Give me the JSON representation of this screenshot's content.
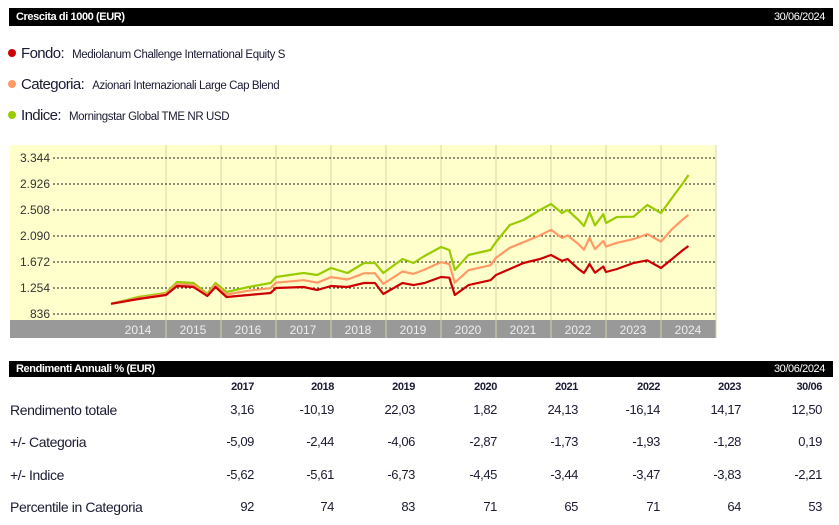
{
  "growth_header": {
    "title": "Crescita di 1000 (EUR)",
    "date": "30/06/2024"
  },
  "legend": [
    {
      "key": "Fondo:",
      "value": "Mediolanum Challenge International Equity S",
      "color": "#cc0000"
    },
    {
      "key": "Categoria:",
      "value": "Azionari Internazionali Large Cap Blend",
      "color": "#ff9966"
    },
    {
      "key": "Indice:",
      "value": "Morningstar Global TME NR USD",
      "color": "#99cc00"
    }
  ],
  "chart_data": {
    "type": "line",
    "title": "",
    "xlabel": "",
    "ylabel": "",
    "x_ticks": [
      "2014",
      "2015",
      "2016",
      "2017",
      "2018",
      "2019",
      "2020",
      "2021",
      "2022",
      "2023",
      "2024"
    ],
    "y_ticks": [
      "836",
      "1.254",
      "1.672",
      "2.090",
      "2.508",
      "2.926",
      "3.344"
    ],
    "y_tick_values": [
      836,
      1254,
      1672,
      2090,
      2508,
      2926,
      3344
    ],
    "ylim": [
      836,
      3344
    ],
    "xlim": [
      2012.2,
      2024.95
    ],
    "grid": true,
    "background": "#ffffcc",
    "x": [
      2014.0,
      2014.5,
      2015.0,
      2015.2,
      2015.5,
      2015.75,
      2015.9,
      2016.1,
      2016.5,
      2016.9,
      2017.0,
      2017.5,
      2017.75,
      2018.0,
      2018.3,
      2018.6,
      2018.8,
      2018.95,
      2019.3,
      2019.5,
      2019.7,
      2020.0,
      2020.15,
      2020.25,
      2020.5,
      2020.9,
      2021.0,
      2021.25,
      2021.5,
      2021.8,
      2022.0,
      2022.2,
      2022.3,
      2022.5,
      2022.6,
      2022.7,
      2022.8,
      2022.95,
      2023.0,
      2023.2,
      2023.5,
      2023.75,
      2024.0,
      2024.2,
      2024.4,
      2024.5
    ],
    "series": [
      {
        "name": "Fondo",
        "color": "#cc0000",
        "values": [
          1000,
          1077,
          1142,
          1286,
          1270,
          1126,
          1270,
          1109,
          1142,
          1174,
          1254,
          1270,
          1222,
          1286,
          1270,
          1334,
          1334,
          1158,
          1334,
          1300,
          1334,
          1431,
          1420,
          1142,
          1300,
          1380,
          1463,
          1560,
          1656,
          1720,
          1785,
          1690,
          1720,
          1560,
          1495,
          1640,
          1500,
          1600,
          1511,
          1560,
          1656,
          1700,
          1576,
          1720,
          1865,
          1929
        ]
      },
      {
        "name": "Categoria",
        "color": "#ff9966",
        "values": [
          1000,
          1090,
          1160,
          1320,
          1300,
          1140,
          1300,
          1150,
          1210,
          1250,
          1340,
          1380,
          1340,
          1430,
          1390,
          1490,
          1490,
          1320,
          1520,
          1480,
          1550,
          1670,
          1640,
          1340,
          1540,
          1620,
          1740,
          1900,
          1990,
          2100,
          2190,
          2060,
          2100,
          1960,
          1870,
          2060,
          1880,
          2010,
          1920,
          1980,
          2040,
          2120,
          2000,
          2200,
          2360,
          2428
        ]
      },
      {
        "name": "Indice",
        "color": "#99cc00",
        "values": [
          1000,
          1109,
          1174,
          1350,
          1334,
          1160,
          1334,
          1190,
          1270,
          1334,
          1431,
          1495,
          1463,
          1576,
          1495,
          1656,
          1656,
          1495,
          1720,
          1656,
          1769,
          1913,
          1865,
          1543,
          1785,
          1865,
          1994,
          2267,
          2347,
          2508,
          2605,
          2460,
          2508,
          2347,
          2251,
          2476,
          2260,
          2440,
          2299,
          2396,
          2400,
          2589,
          2460,
          2701,
          2942,
          3071
        ]
      }
    ]
  },
  "returns_header": {
    "title": "Rendimenti Annuali % (EUR)",
    "date": "30/06/2024"
  },
  "returns": {
    "columns": [
      "2017",
      "2018",
      "2019",
      "2020",
      "2021",
      "2022",
      "2023",
      "30/06"
    ],
    "rows": [
      {
        "label": "Rendimento totale",
        "values": [
          "3,16",
          "-10,19",
          "22,03",
          "1,82",
          "24,13",
          "-16,14",
          "14,17",
          "12,50"
        ]
      },
      {
        "label": "+/- Categoria",
        "values": [
          "-5,09",
          "-2,44",
          "-4,06",
          "-2,87",
          "-1,73",
          "-1,93",
          "-1,28",
          "0,19"
        ]
      },
      {
        "label": "+/- Indice",
        "values": [
          "-5,62",
          "-5,61",
          "-6,73",
          "-4,45",
          "-3,44",
          "-3,47",
          "-3,83",
          "-2,21"
        ]
      },
      {
        "label": "Percentile in Categoria",
        "values": [
          "92",
          "74",
          "83",
          "71",
          "65",
          "71",
          "64",
          "53"
        ]
      }
    ]
  }
}
